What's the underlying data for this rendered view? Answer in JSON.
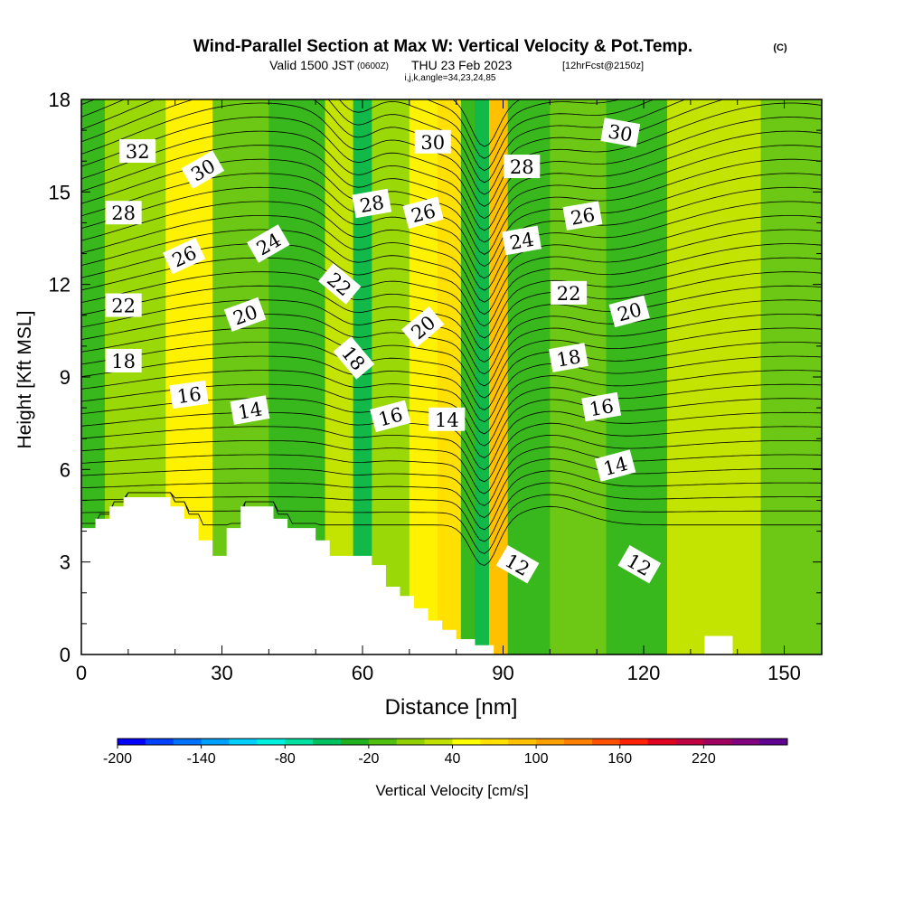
{
  "chart_data": {
    "type": "heatmap",
    "title": "Wind-Parallel Section at Max W: Vertical Velocity & Pot.Temp.",
    "title_mark": "(C)",
    "subtitle_pre": "Valid 1500 JST",
    "subtitle_zulu": "(0600Z)",
    "subtitle_date": "THU 23 Feb 2023",
    "subtitle_run": "[12hrFcst@2150z]",
    "subtitle_ijk": "i,j,k,angle=34,23,24,85",
    "xlabel": "Distance [nm]",
    "ylabel": "Height [Kft MSL]",
    "xlim": [
      0,
      158
    ],
    "ylim": [
      0,
      18
    ],
    "x_ticks": [
      0,
      30,
      60,
      90,
      120,
      150
    ],
    "y_ticks": [
      0,
      3,
      6,
      9,
      12,
      15,
      18
    ],
    "colorbar": {
      "label": "Vertical Velocity [cm/s]",
      "tick_labels": [
        "-200",
        "-140",
        "-80",
        "-20",
        "40",
        "100",
        "160",
        "220"
      ],
      "colors": [
        "#0000ff",
        "#0040ff",
        "#0070ff",
        "#00a0ff",
        "#00d0ff",
        "#00f0e0",
        "#00e0a0",
        "#00c060",
        "#20b020",
        "#50c010",
        "#90d000",
        "#c0e000",
        "#ffff00",
        "#ffe000",
        "#ffc000",
        "#ffa000",
        "#ff8000",
        "#ff5000",
        "#ff2000",
        "#e00020",
        "#c00040",
        "#a00060",
        "#800080",
        "#600090"
      ]
    },
    "terrain_kft": [
      [
        0,
        4.1
      ],
      [
        3,
        4.1
      ],
      [
        3,
        4.4
      ],
      [
        6,
        4.4
      ],
      [
        6,
        4.8
      ],
      [
        9,
        4.8
      ],
      [
        9,
        5.1
      ],
      [
        19,
        5.1
      ],
      [
        19,
        4.8
      ],
      [
        22,
        4.8
      ],
      [
        22,
        4.4
      ],
      [
        25,
        4.4
      ],
      [
        25,
        3.7
      ],
      [
        28,
        3.7
      ],
      [
        28,
        3.2
      ],
      [
        31,
        3.2
      ],
      [
        31,
        4.1
      ],
      [
        34,
        4.1
      ],
      [
        34,
        4.8
      ],
      [
        41,
        4.8
      ],
      [
        41,
        4.4
      ],
      [
        44,
        4.4
      ],
      [
        44,
        4.1
      ],
      [
        50,
        4.1
      ],
      [
        50,
        3.7
      ],
      [
        53,
        3.7
      ],
      [
        53,
        3.2
      ],
      [
        62,
        3.2
      ],
      [
        62,
        2.9
      ],
      [
        65,
        2.9
      ],
      [
        65,
        2.2
      ],
      [
        68,
        2.2
      ],
      [
        68,
        1.9
      ],
      [
        71,
        1.9
      ],
      [
        71,
        1.5
      ],
      [
        74,
        1.5
      ],
      [
        74,
        1.1
      ],
      [
        77,
        1.1
      ],
      [
        77,
        0.8
      ],
      [
        80,
        0.8
      ],
      [
        80,
        0.5
      ],
      [
        84,
        0.5
      ],
      [
        84,
        0.3
      ],
      [
        88,
        0.3
      ],
      [
        88,
        0.0
      ],
      [
        133,
        0.0
      ],
      [
        133,
        0.6
      ],
      [
        139,
        0.6
      ],
      [
        139,
        0.0
      ],
      [
        158,
        0.0
      ]
    ],
    "vertical_velocity_bands": [
      {
        "x": 0,
        "x_end": 5,
        "value": -20
      },
      {
        "x": 5,
        "x_end": 18,
        "value": 10
      },
      {
        "x": 18,
        "x_end": 28,
        "value": 40
      },
      {
        "x": 28,
        "x_end": 40,
        "value": 0
      },
      {
        "x": 40,
        "x_end": 52,
        "value": -20
      },
      {
        "x": 52,
        "x_end": 58,
        "value": 20
      },
      {
        "x": 58,
        "x_end": 62,
        "value": -60
      },
      {
        "x": 62,
        "x_end": 70,
        "value": 10
      },
      {
        "x": 70,
        "x_end": 76,
        "value": 40
      },
      {
        "x": 76,
        "x_end": 81,
        "value": 60
      },
      {
        "x": 81,
        "x_end": 84,
        "value": -40
      },
      {
        "x": 84,
        "x_end": 87,
        "value": -70
      },
      {
        "x": 87,
        "x_end": 91,
        "value": 70
      },
      {
        "x": 91,
        "x_end": 100,
        "value": -20
      },
      {
        "x": 100,
        "x_end": 112,
        "value": 0
      },
      {
        "x": 112,
        "x_end": 125,
        "value": -20
      },
      {
        "x": 125,
        "x_end": 145,
        "value": 20
      },
      {
        "x": 145,
        "x_end": 158,
        "value": -10
      }
    ],
    "theta_contour_labels": [
      {
        "text": "32",
        "x": 12,
        "y": 16.3,
        "angle": 0
      },
      {
        "text": "30",
        "x": 26,
        "y": 15.7,
        "angle": -30
      },
      {
        "text": "28",
        "x": 9,
        "y": 14.3,
        "angle": 0
      },
      {
        "text": "26",
        "x": 22,
        "y": 12.9,
        "angle": -25
      },
      {
        "text": "24",
        "x": 40,
        "y": 13.3,
        "angle": -30
      },
      {
        "text": "22",
        "x": 9,
        "y": 11.3,
        "angle": 0
      },
      {
        "text": "20",
        "x": 35,
        "y": 11.0,
        "angle": -20
      },
      {
        "text": "22",
        "x": 55,
        "y": 12.0,
        "angle": 40
      },
      {
        "text": "18",
        "x": 9,
        "y": 9.5,
        "angle": 0
      },
      {
        "text": "18",
        "x": 58,
        "y": 9.6,
        "angle": 50
      },
      {
        "text": "16",
        "x": 23,
        "y": 8.4,
        "angle": -8
      },
      {
        "text": "14",
        "x": 36,
        "y": 7.9,
        "angle": -10
      },
      {
        "text": "28",
        "x": 62,
        "y": 14.6,
        "angle": -10
      },
      {
        "text": "26",
        "x": 73,
        "y": 14.3,
        "angle": -15
      },
      {
        "text": "20",
        "x": 73,
        "y": 10.6,
        "angle": -40
      },
      {
        "text": "16",
        "x": 66,
        "y": 7.7,
        "angle": -15
      },
      {
        "text": "14",
        "x": 78,
        "y": 7.6,
        "angle": 0
      },
      {
        "text": "30",
        "x": 75,
        "y": 16.6,
        "angle": 0
      },
      {
        "text": "28",
        "x": 94,
        "y": 15.8,
        "angle": 0
      },
      {
        "text": "24",
        "x": 94,
        "y": 13.4,
        "angle": -10
      },
      {
        "text": "26",
        "x": 107,
        "y": 14.2,
        "angle": -10
      },
      {
        "text": "30",
        "x": 115,
        "y": 16.9,
        "angle": 10
      },
      {
        "text": "22",
        "x": 104,
        "y": 11.7,
        "angle": 0
      },
      {
        "text": "20",
        "x": 117,
        "y": 11.1,
        "angle": -15
      },
      {
        "text": "18",
        "x": 104,
        "y": 9.6,
        "angle": -10
      },
      {
        "text": "16",
        "x": 111,
        "y": 8.0,
        "angle": -10
      },
      {
        "text": "14",
        "x": 114,
        "y": 6.1,
        "angle": -15
      },
      {
        "text": "12",
        "x": 93,
        "y": 2.9,
        "angle": 30
      },
      {
        "text": "12",
        "x": 119,
        "y": 2.9,
        "angle": 30
      }
    ]
  }
}
